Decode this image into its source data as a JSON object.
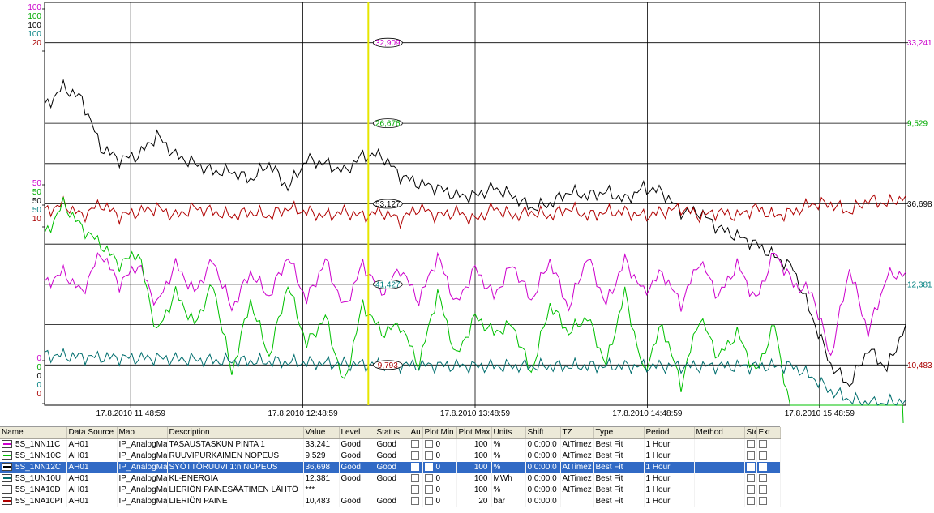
{
  "chart_data": {
    "type": "line",
    "x_ticks": [
      "17.8.2010  11:48:59",
      "17.8.2010  12:48:59",
      "17.8.2010  13:48:59",
      "17.8.2010  14:48:59",
      "17.8.2010  15:48:59"
    ],
    "left_scale_top": [
      {
        "text": "100",
        "color": "#cc00cc"
      },
      {
        "text": "100",
        "color": "#00aa00"
      },
      {
        "text": "100",
        "color": "#000000"
      },
      {
        "text": "100",
        "color": "#008080"
      },
      {
        "text": "20",
        "color": "#aa0000"
      }
    ],
    "left_scale_mid": [
      {
        "text": "50",
        "color": "#cc00cc"
      },
      {
        "text": "50",
        "color": "#00aa00"
      },
      {
        "text": "50",
        "color": "#000000"
      },
      {
        "text": "50",
        "color": "#008080"
      },
      {
        "text": "10",
        "color": "#aa0000"
      }
    ],
    "left_scale_bottom": [
      {
        "text": "0",
        "color": "#cc00cc"
      },
      {
        "text": "0",
        "color": "#00aa00"
      },
      {
        "text": "0",
        "color": "#000000"
      },
      {
        "text": "0",
        "color": "#008080"
      },
      {
        "text": "0",
        "color": "#aa0000"
      }
    ],
    "right_values": [
      {
        "text": "33,241",
        "color": "#cc00cc",
        "at": 0.9
      },
      {
        "text": "9,529",
        "color": "#00aa00",
        "at": 0.7
      },
      {
        "text": "36,698",
        "color": "#000000",
        "at": 0.5
      },
      {
        "text": "12,381",
        "color": "#008080",
        "at": 0.3
      },
      {
        "text": "10,483",
        "color": "#aa0000",
        "at": 0.1
      }
    ],
    "cursor_values": [
      {
        "text": "32,909",
        "color": "#cc00cc",
        "at": 0.9
      },
      {
        "text": "26,676",
        "color": "#00aa00",
        "at": 0.7
      },
      {
        "text": "53,127",
        "color": "#000000",
        "at": 0.5
      },
      {
        "text": "41,427",
        "color": "#008080",
        "at": 0.3
      },
      {
        "text": "9,793",
        "color": "#aa0000",
        "at": 0.1
      }
    ],
    "cursor_time_fraction": 0.376,
    "series": [
      {
        "color": "#000000",
        "values": [
          74,
          79,
          76,
          64,
          61,
          62,
          67,
          62,
          60,
          58,
          58,
          56,
          60,
          54,
          61,
          60,
          58,
          62,
          62,
          57,
          55,
          54,
          52,
          52,
          54,
          52,
          49,
          50,
          53,
          52,
          53,
          51,
          54,
          53,
          48,
          48,
          44,
          42,
          40,
          37,
          34,
          22,
          10,
          5,
          14,
          9,
          20
        ]
      },
      {
        "color": "#b00000",
        "values": [
          48,
          50,
          47,
          50,
          47,
          48,
          49,
          47,
          49,
          48,
          47,
          48,
          47,
          49,
          48,
          47,
          48,
          47,
          48,
          46,
          49,
          47,
          48,
          46,
          49,
          47,
          48,
          47,
          49,
          47,
          48,
          48,
          47,
          48,
          49,
          47,
          48,
          47,
          49,
          47,
          48,
          50,
          50,
          48,
          51,
          50,
          52
        ]
      },
      {
        "color": "#cc00cc",
        "values": [
          30,
          33,
          28,
          38,
          30,
          35,
          25,
          35,
          28,
          36,
          24,
          33,
          27,
          37,
          26,
          36,
          24,
          35,
          28,
          34,
          26,
          37,
          25,
          34,
          27,
          35,
          26,
          36,
          24,
          37,
          25,
          36,
          28,
          33,
          25,
          36,
          27,
          35,
          26,
          38,
          30,
          28,
          12,
          34,
          18,
          32,
          33
        ]
      },
      {
        "color": "#00c000",
        "values": [
          42,
          50,
          44,
          40,
          35,
          38,
          18,
          28,
          20,
          30,
          8,
          26,
          12,
          30,
          15,
          22,
          5,
          25,
          18,
          20,
          10,
          28,
          12,
          22,
          18,
          20,
          8,
          25,
          18,
          22,
          10,
          28,
          8,
          20,
          5,
          22,
          12,
          18,
          8,
          20,
          -6,
          -10,
          -20,
          -14,
          -25,
          -10,
          -20
        ]
      },
      {
        "color": "#006e6e",
        "values": [
          12.4,
          12.3,
          12.0,
          11.9,
          11.8,
          11.7,
          11.7,
          11.5,
          11.3,
          11.1,
          11.0,
          10.9,
          10.8,
          10.7,
          10.5,
          10.4,
          10.3,
          10.1,
          10.1,
          10.0,
          9.9,
          9.9,
          9.8,
          9.7,
          9.7,
          9.7,
          9.7,
          9.7,
          9.7,
          9.7,
          9.7,
          9.7,
          9.7,
          9.7,
          9.7,
          9.7,
          9.7,
          9.7,
          9.7,
          9.7,
          9.7,
          7.0,
          3.5,
          1.5,
          0.5,
          0.6,
          1.3
        ]
      }
    ]
  },
  "legend": {
    "columns": [
      "Name",
      "Data Source",
      "Map",
      "Description",
      "Value",
      "Level",
      "Status",
      "Au",
      "Plot Min",
      "Plot Max",
      "Units",
      "Shift",
      "TZ",
      "Type",
      "Period",
      "Method",
      "Ste",
      "Ext"
    ],
    "rows": [
      {
        "color": "#cc00cc",
        "name": "5S_1NN11C",
        "source": "AH01",
        "map": "IP_AnalogMa",
        "desc": "TASAUSTASKUN PINTA 1",
        "value": "33,241",
        "level": "Good",
        "status": "Good",
        "min": "0",
        "max": "100",
        "units": "%",
        "shift": "0  0:00:0",
        "tz": "AtTimez",
        "type": "Best Fit",
        "period": "1 Hour",
        "selected": false
      },
      {
        "color": "#00c000",
        "name": "5S_1NN10C",
        "source": "AH01",
        "map": "IP_AnalogMa",
        "desc": "RUUVIPURKAIMEN NOPEUS",
        "value": "9,529",
        "level": "Good",
        "status": "Good",
        "min": "0",
        "max": "100",
        "units": "%",
        "shift": "0  0:00:0",
        "tz": "AtTimez",
        "type": "Best Fit",
        "period": "1 Hour",
        "selected": false
      },
      {
        "color": "#000000",
        "name": "5S_1NN12C",
        "source": "AH01",
        "map": "IP_AnalogMa",
        "desc": "SYÖTTÖRUUVI 1:n NOPEUS",
        "value": "36,698",
        "level": "Good",
        "status": "Good",
        "min": "0",
        "max": "100",
        "units": "%",
        "shift": "0  0:00:0",
        "tz": "AtTimez",
        "type": "Best Fit",
        "period": "1 Hour",
        "selected": true
      },
      {
        "color": "#006e6e",
        "name": "5S_1UN10U",
        "source": "AH01",
        "map": "IP_AnalogMa",
        "desc": "KL-ENERGIA",
        "value": "12,381",
        "level": "Good",
        "status": "Good",
        "min": "0",
        "max": "100",
        "units": "MWh",
        "shift": "0  0:00:0",
        "tz": "AtTimez",
        "type": "Best Fit",
        "period": "1 Hour",
        "selected": false
      },
      {
        "color": "#ffffff",
        "name": "5S_1NA10D",
        "source": "AH01",
        "map": "IP_AnalogMa",
        "desc": "LIERIÖN PAINESÄÄTIMEN LÄHTÖ",
        "value": "***",
        "level": "",
        "status": "",
        "min": "0",
        "max": "100",
        "units": "%",
        "shift": "0  0:00:0",
        "tz": "AtTimez",
        "type": "Best Fit",
        "period": "1 Hour",
        "selected": false
      },
      {
        "color": "#b00000",
        "name": "5S_1NA10PI",
        "source": "AH01",
        "map": "IP_AnalogMa",
        "desc": "LIERIÖN PAINE",
        "value": "10,483",
        "level": "Good",
        "status": "Good",
        "min": "0",
        "max": "20",
        "units": "bar",
        "shift": "0  0:00:0",
        "tz": "",
        "type": "Best Fit",
        "period": "1 Hour",
        "selected": false
      }
    ]
  }
}
